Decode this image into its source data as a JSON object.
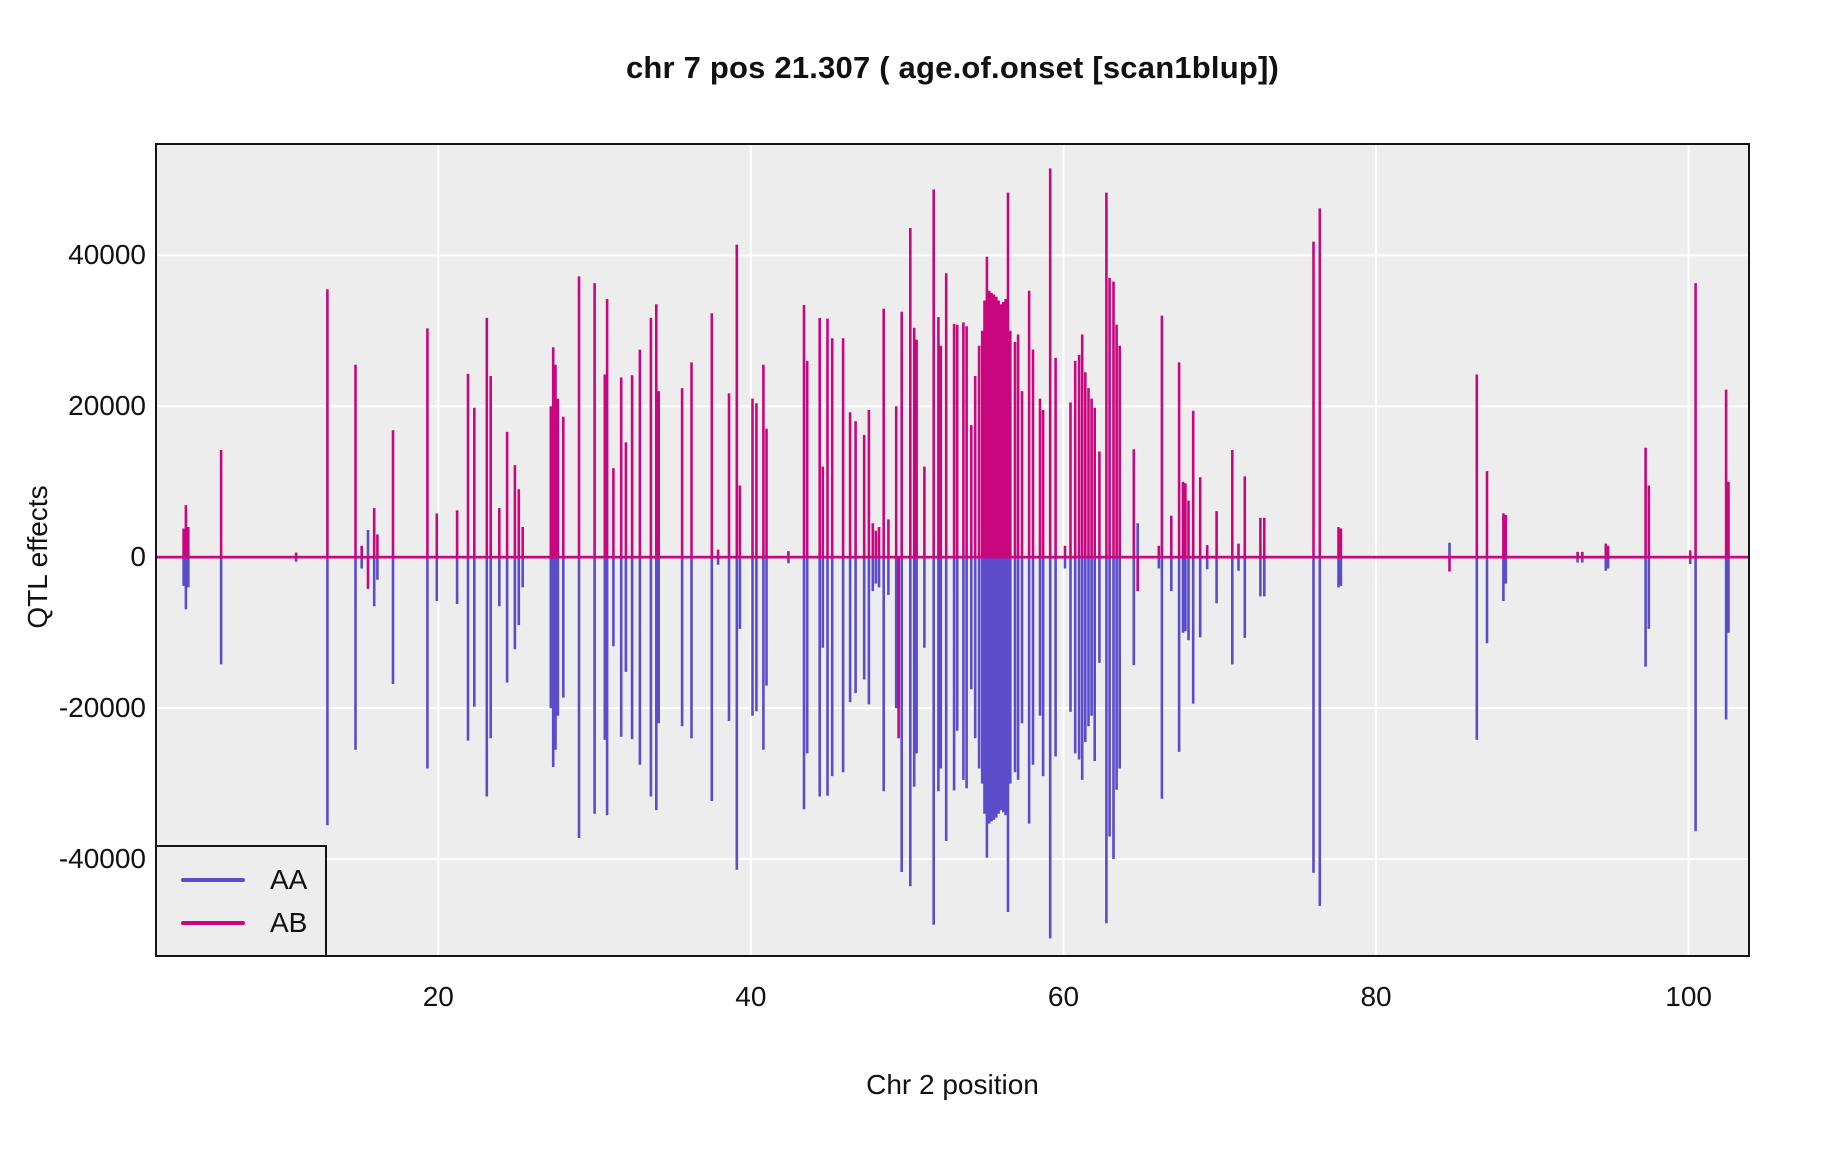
{
  "title": "chr 7 pos 21.307 ( age.of.onset  [scan1blup])",
  "panel": {
    "bg_color": "#ededed",
    "grid_color": "#ffffff",
    "border_color": "#141414"
  },
  "legend": {
    "position": "bottom-left"
  },
  "chart_data": {
    "type": "line",
    "title": "chr 7 pos 21.307 ( age.of.onset  [scan1blup])",
    "xlabel": "Chr 2 position",
    "ylabel": "QTL effects",
    "x_range": [
      2.0,
      103.8
    ],
    "y_range": [
      -52700,
      54600
    ],
    "x_ticks": [
      20,
      40,
      60,
      80,
      100
    ],
    "y_ticks": [
      40000,
      20000,
      0,
      -20000,
      -40000
    ],
    "grid": true,
    "legend_position": "bottom-left",
    "series": [
      {
        "name": "AA",
        "color": "#5b4cc9"
      },
      {
        "name": "AB",
        "color": "#c8077f"
      }
    ],
    "note": "spikes are [position_cM, AB_effect, AA_effect]; AA defaults to -AB (mirrored needles around 0)",
    "spikes": [
      [
        3.7,
        3800
      ],
      [
        3.85,
        6900
      ],
      [
        4.0,
        4000
      ],
      [
        6.1,
        14200
      ],
      [
        10.9,
        600
      ],
      [
        12.9,
        35500
      ],
      [
        14.7,
        25500
      ],
      [
        15.1,
        1500
      ],
      [
        15.5,
        -4200,
        3600
      ],
      [
        15.9,
        6500
      ],
      [
        16.1,
        3000
      ],
      [
        17.1,
        16800
      ],
      [
        19.3,
        30300,
        -28000
      ],
      [
        19.9,
        5800
      ],
      [
        21.2,
        6200
      ],
      [
        21.9,
        24300
      ],
      [
        22.3,
        19800
      ],
      [
        23.1,
        31700
      ],
      [
        23.35,
        24000
      ],
      [
        23.9,
        6500
      ],
      [
        24.4,
        16600
      ],
      [
        24.9,
        12200
      ],
      [
        25.15,
        9000
      ],
      [
        25.4,
        4000
      ],
      [
        27.2,
        20000
      ],
      [
        27.35,
        27800
      ],
      [
        27.5,
        25500
      ],
      [
        27.65,
        21000
      ],
      [
        28.0,
        18600
      ],
      [
        29.0,
        37200
      ],
      [
        30.0,
        36300,
        -34000
      ],
      [
        30.65,
        24200
      ],
      [
        30.8,
        34200
      ],
      [
        31.2,
        11800
      ],
      [
        31.7,
        23800
      ],
      [
        32.0,
        15200
      ],
      [
        32.4,
        24100
      ],
      [
        32.9,
        27500
      ],
      [
        33.6,
        31700
      ],
      [
        33.95,
        33500
      ],
      [
        34.1,
        22000
      ],
      [
        35.6,
        22400
      ],
      [
        36.2,
        25800,
        -24000
      ],
      [
        37.5,
        32300
      ],
      [
        37.9,
        1000
      ],
      [
        38.6,
        21700
      ],
      [
        39.1,
        41400
      ],
      [
        39.3,
        9500
      ],
      [
        40.1,
        21000
      ],
      [
        40.35,
        20400
      ],
      [
        40.8,
        25500
      ],
      [
        41.0,
        17000
      ],
      [
        42.4,
        800
      ],
      [
        43.4,
        33400
      ],
      [
        43.6,
        26000
      ],
      [
        44.4,
        31700
      ],
      [
        44.6,
        12000
      ],
      [
        44.9,
        31600
      ],
      [
        45.2,
        29000
      ],
      [
        45.9,
        29000,
        -28500
      ],
      [
        46.35,
        19200
      ],
      [
        46.7,
        18000
      ],
      [
        47.25,
        16200
      ],
      [
        47.55,
        19500
      ],
      [
        47.8,
        4500
      ],
      [
        48.0,
        3500
      ],
      [
        48.2,
        4000
      ],
      [
        48.5,
        32900,
        -31000
      ],
      [
        48.8,
        5000
      ],
      [
        49.3,
        20000
      ],
      [
        49.45,
        -24000,
        -20000
      ],
      [
        49.65,
        32500,
        -41700
      ],
      [
        50.2,
        43600
      ],
      [
        50.45,
        30400
      ],
      [
        50.6,
        28800,
        -26000
      ],
      [
        51.1,
        12000
      ],
      [
        51.7,
        48700
      ],
      [
        52.0,
        31800,
        -31000
      ],
      [
        52.15,
        28000
      ],
      [
        52.5,
        37600
      ],
      [
        53.0,
        30900
      ],
      [
        53.2,
        30800,
        -23000
      ],
      [
        53.6,
        31100,
        -29500
      ],
      [
        53.8,
        30600
      ],
      [
        54.1,
        17500
      ],
      [
        54.35,
        24000
      ],
      [
        54.6,
        28000
      ],
      [
        54.8,
        30000
      ],
      [
        54.95,
        34000
      ],
      [
        55.1,
        39800
      ],
      [
        55.25,
        35300
      ],
      [
        55.4,
        35000
      ],
      [
        55.55,
        34800
      ],
      [
        55.7,
        34500
      ],
      [
        55.85,
        34000
      ],
      [
        56.0,
        33500
      ],
      [
        56.15,
        33800
      ],
      [
        56.3,
        34200
      ],
      [
        56.45,
        48300,
        -47000
      ],
      [
        56.6,
        30000
      ],
      [
        56.9,
        28500
      ],
      [
        57.1,
        29500
      ],
      [
        57.35,
        22000
      ],
      [
        57.8,
        35300
      ],
      [
        58.05,
        27500
      ],
      [
        58.5,
        21000
      ],
      [
        58.7,
        19500,
        -29000
      ],
      [
        59.15,
        51500,
        -50500
      ],
      [
        59.5,
        26400
      ],
      [
        60.1,
        1500
      ],
      [
        60.45,
        20500
      ],
      [
        60.75,
        26000
      ],
      [
        61.0,
        26800
      ],
      [
        61.2,
        29500
      ],
      [
        61.4,
        24500
      ],
      [
        61.6,
        22400
      ],
      [
        61.8,
        21000
      ],
      [
        62.0,
        19800,
        -27000
      ],
      [
        62.3,
        14000
      ],
      [
        62.75,
        48300,
        -48500
      ],
      [
        62.95,
        37000
      ],
      [
        63.2,
        36500,
        -40000
      ],
      [
        63.4,
        30800
      ],
      [
        63.6,
        28000
      ],
      [
        64.5,
        14300
      ],
      [
        64.75,
        -4500,
        4500
      ],
      [
        66.1,
        1500
      ],
      [
        66.3,
        32000
      ],
      [
        66.9,
        5500,
        -4500
      ],
      [
        67.4,
        25800
      ],
      [
        67.65,
        10000
      ],
      [
        67.8,
        9800
      ],
      [
        68.0,
        7500,
        -11000
      ],
      [
        68.3,
        19400
      ],
      [
        68.75,
        10600
      ],
      [
        69.2,
        1600
      ],
      [
        69.8,
        6100
      ],
      [
        70.8,
        14200
      ],
      [
        71.2,
        1800
      ],
      [
        71.6,
        10700
      ],
      [
        72.6,
        5200
      ],
      [
        72.85,
        5200
      ],
      [
        76.0,
        41800
      ],
      [
        76.4,
        46200
      ],
      [
        77.6,
        4000
      ],
      [
        77.75,
        3800
      ],
      [
        84.7,
        -1900,
        1900
      ],
      [
        86.45,
        24200
      ],
      [
        87.1,
        11400
      ],
      [
        88.15,
        5800
      ],
      [
        88.3,
        5600,
        -3500
      ],
      [
        92.9,
        700
      ],
      [
        93.2,
        700
      ],
      [
        94.7,
        1800
      ],
      [
        94.85,
        1500
      ],
      [
        97.25,
        14500
      ],
      [
        97.45,
        9500
      ],
      [
        100.1,
        900
      ],
      [
        100.45,
        36300
      ],
      [
        102.4,
        22200,
        -21500
      ],
      [
        102.55,
        10000
      ]
    ]
  }
}
